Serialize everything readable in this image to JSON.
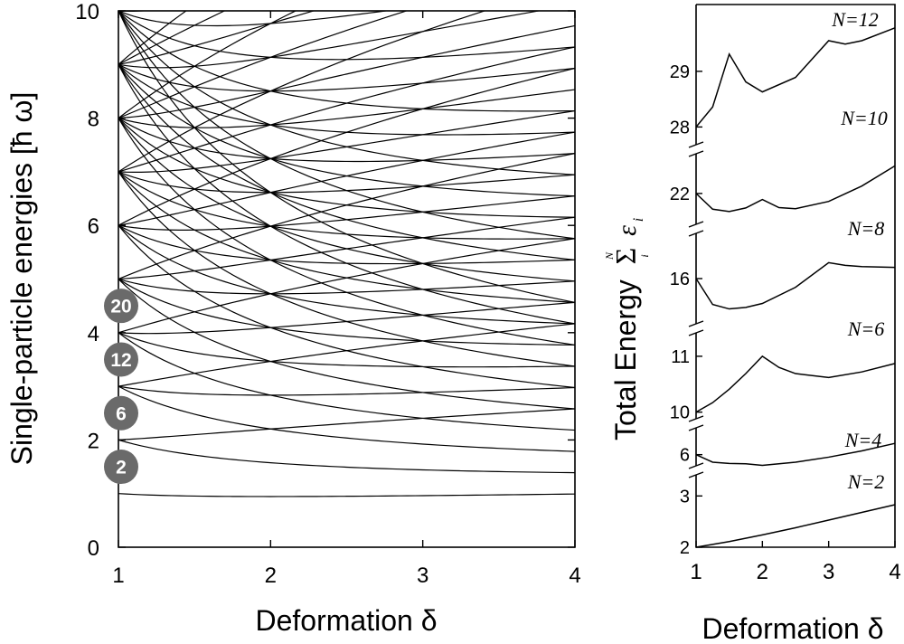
{
  "chart_data": [
    {
      "type": "line",
      "subtype": "level-diagram",
      "xlabel": "Deformation δ",
      "ylabel": "Single-particle energies [ħ ω]",
      "xlim": [
        1,
        4
      ],
      "ylim": [
        0,
        10
      ],
      "xticks": [
        "1",
        "2",
        "3",
        "4"
      ],
      "yticks": [
        "0",
        "2",
        "4",
        "6",
        "8",
        "10"
      ],
      "levels": [
        {
          "nx": 0,
          "ny": 0
        },
        {
          "nx": 0,
          "ny": 1
        },
        {
          "nx": 0,
          "ny": 2
        },
        {
          "nx": 0,
          "ny": 3
        },
        {
          "nx": 0,
          "ny": 4
        },
        {
          "nx": 0,
          "ny": 5
        },
        {
          "nx": 0,
          "ny": 6
        },
        {
          "nx": 0,
          "ny": 7
        },
        {
          "nx": 0,
          "ny": 8
        },
        {
          "nx": 0,
          "ny": 9
        },
        {
          "nx": 1,
          "ny": 0
        },
        {
          "nx": 1,
          "ny": 1
        },
        {
          "nx": 1,
          "ny": 2
        },
        {
          "nx": 1,
          "ny": 3
        },
        {
          "nx": 1,
          "ny": 4
        },
        {
          "nx": 1,
          "ny": 5
        },
        {
          "nx": 1,
          "ny": 6
        },
        {
          "nx": 1,
          "ny": 7
        },
        {
          "nx": 1,
          "ny": 8
        },
        {
          "nx": 2,
          "ny": 0
        },
        {
          "nx": 2,
          "ny": 1
        },
        {
          "nx": 2,
          "ny": 2
        },
        {
          "nx": 2,
          "ny": 3
        },
        {
          "nx": 2,
          "ny": 4
        },
        {
          "nx": 2,
          "ny": 5
        },
        {
          "nx": 2,
          "ny": 6
        },
        {
          "nx": 2,
          "ny": 7
        },
        {
          "nx": 3,
          "ny": 0
        },
        {
          "nx": 3,
          "ny": 1
        },
        {
          "nx": 3,
          "ny": 2
        },
        {
          "nx": 3,
          "ny": 3
        },
        {
          "nx": 3,
          "ny": 4
        },
        {
          "nx": 3,
          "ny": 5
        },
        {
          "nx": 3,
          "ny": 6
        },
        {
          "nx": 4,
          "ny": 0
        },
        {
          "nx": 4,
          "ny": 1
        },
        {
          "nx": 4,
          "ny": 2
        },
        {
          "nx": 4,
          "ny": 3
        },
        {
          "nx": 4,
          "ny": 4
        },
        {
          "nx": 4,
          "ny": 5
        },
        {
          "nx": 5,
          "ny": 0
        },
        {
          "nx": 5,
          "ny": 1
        },
        {
          "nx": 5,
          "ny": 2
        },
        {
          "nx": 5,
          "ny": 3
        },
        {
          "nx": 5,
          "ny": 4
        },
        {
          "nx": 6,
          "ny": 0
        },
        {
          "nx": 6,
          "ny": 1
        },
        {
          "nx": 6,
          "ny": 2
        },
        {
          "nx": 6,
          "ny": 3
        },
        {
          "nx": 7,
          "ny": 0
        },
        {
          "nx": 7,
          "ny": 1
        },
        {
          "nx": 7,
          "ny": 2
        },
        {
          "nx": 8,
          "ny": 0
        },
        {
          "nx": 8,
          "ny": 1
        },
        {
          "nx": 9,
          "ny": 0
        }
      ],
      "shell_markers": [
        {
          "label": "2",
          "y": 1.5
        },
        {
          "label": "6",
          "y": 2.5
        },
        {
          "label": "12",
          "y": 3.5
        },
        {
          "label": "20",
          "y": 4.5
        }
      ]
    },
    {
      "type": "line",
      "xlabel": "Deformation δ",
      "ylabel_text": "Total Energy",
      "ylabel_symbol": "Σ",
      "ylabel_var": "ε",
      "ylabel_sub": "i",
      "ylabel_top": "N",
      "xlim": [
        1,
        4
      ],
      "xticks": [
        "1",
        "2",
        "3",
        "4"
      ],
      "panels": [
        {
          "name": "N=2",
          "ytick_values": [
            2,
            3
          ],
          "ylim": [
            2,
            3.5
          ]
        },
        {
          "name": "N=4",
          "ytick_values": [
            6
          ],
          "ylim": [
            5.5,
            7.0
          ]
        },
        {
          "name": "N=6",
          "ytick_values": [
            10,
            11
          ],
          "ylim": [
            9.8,
            11.5
          ]
        },
        {
          "name": "N=8",
          "ytick_values": [
            16
          ],
          "ylim": [
            14,
            18
          ]
        },
        {
          "name": "N=10",
          "ytick_values": [
            22
          ],
          "ylim": [
            20,
            24.5
          ]
        },
        {
          "name": "N=12",
          "ytick_values": [
            28,
            29
          ],
          "ylim": [
            27.6,
            30.2
          ]
        }
      ],
      "series": [
        {
          "name": "N=2",
          "x": [
            1,
            1.5,
            2,
            2.5,
            3,
            3.5,
            4
          ],
          "y": [
            2.0,
            2.11,
            2.24,
            2.38,
            2.53,
            2.68,
            2.83
          ]
        },
        {
          "name": "N=4",
          "x": [
            1,
            1.25,
            1.5,
            1.75,
            2,
            2.5,
            3,
            3.5,
            4
          ],
          "y": [
            6.0,
            5.76,
            5.72,
            5.71,
            5.66,
            5.76,
            5.92,
            6.12,
            6.36
          ]
        },
        {
          "name": "N=6",
          "x": [
            1,
            1.25,
            1.5,
            1.75,
            2,
            2.25,
            2.5,
            3,
            3.5,
            4
          ],
          "y": [
            10.0,
            10.17,
            10.41,
            10.69,
            11.0,
            10.8,
            10.69,
            10.62,
            10.72,
            10.87
          ]
        },
        {
          "name": "N=8",
          "x": [
            1,
            1.25,
            1.5,
            1.75,
            2,
            2.5,
            3,
            3.25,
            3.5,
            4
          ],
          "y": [
            16.0,
            14.96,
            14.78,
            14.84,
            15.0,
            15.65,
            16.64,
            16.53,
            16.48,
            16.45
          ]
        },
        {
          "name": "N=10",
          "x": [
            1,
            1.25,
            1.5,
            1.75,
            2,
            2.25,
            2.5,
            3,
            3.5,
            4
          ],
          "y": [
            22.0,
            21.11,
            20.98,
            21.18,
            21.66,
            21.2,
            21.14,
            21.55,
            22.42,
            23.56
          ]
        },
        {
          "name": "N=12",
          "x": [
            1,
            1.25,
            1.5,
            1.75,
            2,
            2.5,
            3,
            3.25,
            3.5,
            4
          ],
          "y": [
            28.0,
            28.36,
            29.31,
            28.81,
            28.63,
            28.89,
            29.55,
            29.49,
            29.55,
            29.78
          ]
        }
      ]
    }
  ]
}
